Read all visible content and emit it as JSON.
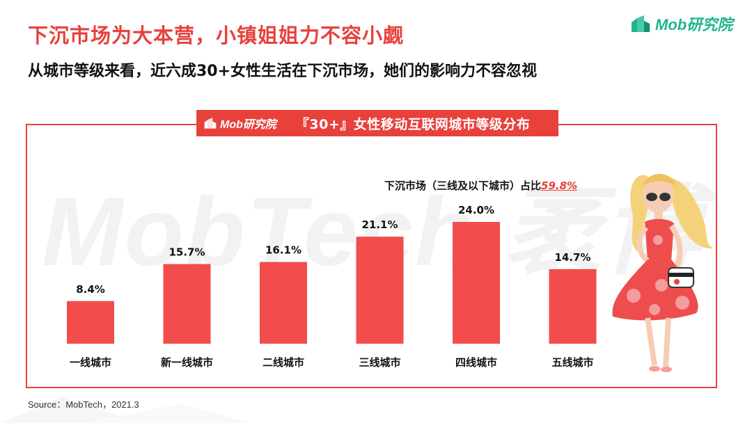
{
  "header": {
    "title": "下沉市场为大本营，小镇姐姐力不容小觑",
    "subtitle": "从城市等级来看，近六成30+女性生活在下沉市场，她们的影响力不容忽视"
  },
  "brand": {
    "logo_text": "Mob研究院",
    "logo_color": "#1fb48f"
  },
  "watermark": "MobTech 袤博",
  "chart_header": {
    "logo_text": "Mob研究院",
    "title": "『30+』女性移动互联网城市等级分布"
  },
  "highlight": {
    "label": "下沉市场（三线及以下城市）占比",
    "value": "59.8%"
  },
  "colors": {
    "accent": "#e8413c",
    "bar": "#f24c4c",
    "text": "#111111"
  },
  "chart_data": {
    "type": "bar",
    "categories": [
      "一线城市",
      "新一线城市",
      "二线城市",
      "三线城市",
      "四线城市",
      "五线城市"
    ],
    "values": [
      8.4,
      15.7,
      16.1,
      21.1,
      24.0,
      14.7
    ],
    "value_labels": [
      "8.4%",
      "15.7%",
      "16.1%",
      "21.1%",
      "24.0%",
      "14.7%"
    ],
    "title": "『30+』女性移动互联网城市等级分布",
    "xlabel": "",
    "ylabel": "",
    "ylim": [
      0,
      24.0
    ],
    "grid": false,
    "legend": "none"
  },
  "source": "Source：MobTech，2021.3"
}
